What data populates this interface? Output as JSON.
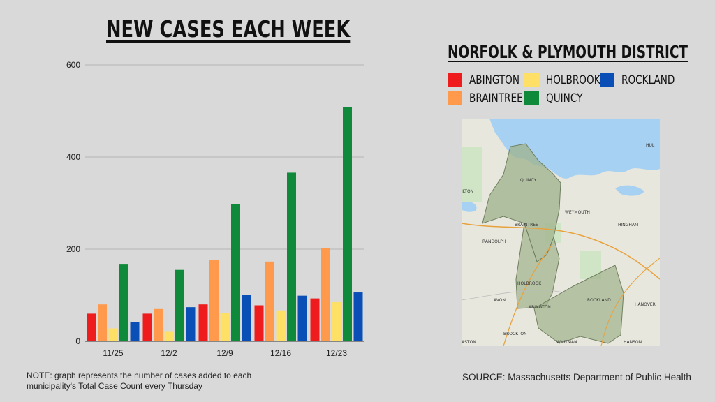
{
  "title": "NEW CASES EACH WEEK",
  "district": "NORFOLK & PLYMOUTH DISTRICT",
  "legend": [
    {
      "name": "ABINGTON",
      "color": "#ee1c1c"
    },
    {
      "name": "HOLBROOK",
      "color": "#ffe066"
    },
    {
      "name": "ROCKLAND",
      "color": "#0a4fb5"
    },
    {
      "name": "BRAINTREE",
      "color": "#ff9a4d"
    },
    {
      "name": "QUINCY",
      "color": "#0e8a3a"
    }
  ],
  "chart_data": {
    "type": "bar",
    "categories": [
      "11/25",
      "12/2",
      "12/9",
      "12/16",
      "12/23"
    ],
    "yticks": [
      0,
      200,
      400,
      600
    ],
    "ylim": [
      0,
      600
    ],
    "grid": true,
    "series": [
      {
        "name": "ABINGTON",
        "color": "#ee1c1c",
        "values": [
          60,
          60,
          80,
          78,
          93
        ]
      },
      {
        "name": "BRAINTREE",
        "color": "#ff9a4d",
        "values": [
          80,
          70,
          176,
          173,
          202
        ]
      },
      {
        "name": "HOLBROOK",
        "color": "#ffe066",
        "values": [
          28,
          22,
          62,
          67,
          85
        ]
      },
      {
        "name": "QUINCY",
        "color": "#0e8a3a",
        "values": [
          168,
          155,
          297,
          366,
          509
        ]
      },
      {
        "name": "ROCKLAND",
        "color": "#0a4fb5",
        "values": [
          42,
          74,
          101,
          99,
          106
        ]
      }
    ]
  },
  "map": {
    "labels": [
      "QUINCY",
      "WEYMOUTH",
      "BRAINTREE",
      "HINGHAM",
      "RANDOLPH",
      "HOLBROOK",
      "AVON",
      "ABINGTON",
      "ROCKLAND",
      "HANOVER",
      "BROCKTON",
      "WHITMAN",
      "HANSON",
      "ILTON",
      "HUL",
      "ASTON"
    ]
  },
  "note": "NOTE: graph represents the number of cases added to each municipality's Total Case Count every Thursday",
  "source": "SOURCE: Massachusetts Department of Public Health"
}
